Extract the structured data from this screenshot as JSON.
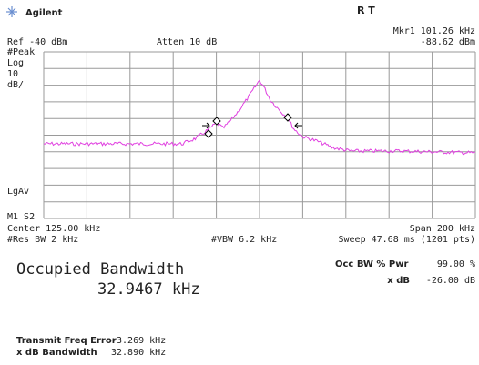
{
  "header": {
    "brand": "Agilent",
    "status": "R T",
    "marker": "Mkr1 101.26 kHz",
    "marker_level": "-88.62 dBm",
    "ref": "Ref -40 dBm",
    "atten": "Atten 10 dB"
  },
  "side_labels": [
    "#Peak",
    "Log",
    "10",
    "dB/"
  ],
  "avg_label": "LgAv",
  "marker_state": "M1 S2",
  "footer": {
    "center": "Center 125.00 kHz",
    "span": "Span 200 kHz",
    "rbw": "#Res BW 2 kHz",
    "vbw": "#VBW 6.2 kHz",
    "sweep": "Sweep 47.68 ms (1201 pts)"
  },
  "result": {
    "title": "Occupied Bandwidth",
    "value": "32.9467 kHz",
    "pwr_label": "Occ BW % Pwr",
    "pwr_value": "99.00 %",
    "xdb_label": "x dB",
    "xdb_value": "-26.00 dB"
  },
  "details": [
    {
      "label": "Transmit Freq Error",
      "value": "-3.269 kHz"
    },
    {
      "label": "x dB Bandwidth",
      "value": "32.890 kHz"
    }
  ]
}
